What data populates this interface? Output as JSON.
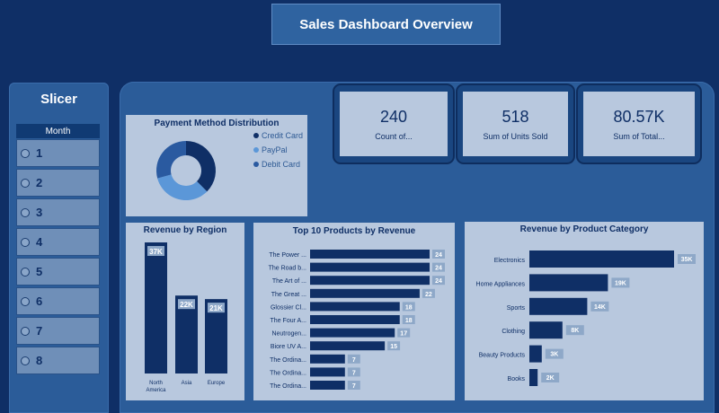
{
  "header": {
    "title": "Sales Dashboard Overview"
  },
  "slicer": {
    "title": "Slicer",
    "header": "Month",
    "items": [
      "1",
      "2",
      "3",
      "4",
      "5",
      "6",
      "7",
      "8"
    ]
  },
  "kpis": [
    {
      "value": "240",
      "label": "Count of..."
    },
    {
      "value": "518",
      "label": "Sum of Units Sold"
    },
    {
      "value": "80.57K",
      "label": "Sum of Total..."
    }
  ],
  "colors": {
    "dark": "#0f2f66",
    "mid": "#3d76c2",
    "light": "#5b97d8",
    "panel": "#b8c8de"
  },
  "chart_data": [
    {
      "type": "pie",
      "title": "Payment Method Distribution",
      "categories": [
        "Credit Card",
        "PayPal",
        "Debit Card"
      ],
      "values": [
        0.375,
        0.333,
        0.292
      ]
    },
    {
      "type": "bar",
      "title": "Revenue by Region",
      "categories": [
        "North America",
        "Asia",
        "Europe"
      ],
      "values": [
        37,
        22,
        21
      ],
      "data_labels": [
        "37K",
        "22K",
        "21K"
      ],
      "ylim": [
        0,
        37
      ]
    },
    {
      "type": "bar",
      "orientation": "horizontal",
      "title": "Top 10 Products by Revenue",
      "categories": [
        "The Power ...",
        "The Road b...",
        "The Art of ...",
        "The Great ...",
        "Glossier Cl...",
        "The Four A...",
        "Neutrogen...",
        "Biore UV A...",
        "The Ordina...",
        "The Ordina...",
        "The Ordina..."
      ],
      "values": [
        24,
        24,
        24,
        22,
        18,
        18,
        17,
        15,
        7,
        7,
        7
      ],
      "data_labels": [
        "24",
        "24",
        "24",
        "22",
        "18",
        "18",
        "17",
        "15",
        "7",
        "7",
        "7"
      ],
      "xlim": [
        0,
        24
      ]
    },
    {
      "type": "bar",
      "orientation": "horizontal",
      "title": "Revenue by Product Category",
      "categories": [
        "Electronics",
        "Home Appliances",
        "Sports",
        "Clothing",
        "Beauty Products",
        "Books"
      ],
      "values": [
        35,
        19,
        14,
        8,
        3,
        2
      ],
      "data_labels": [
        "35K",
        "19K",
        "14K",
        "8K",
        "3K",
        "2K"
      ],
      "xlim": [
        0,
        35
      ]
    }
  ]
}
